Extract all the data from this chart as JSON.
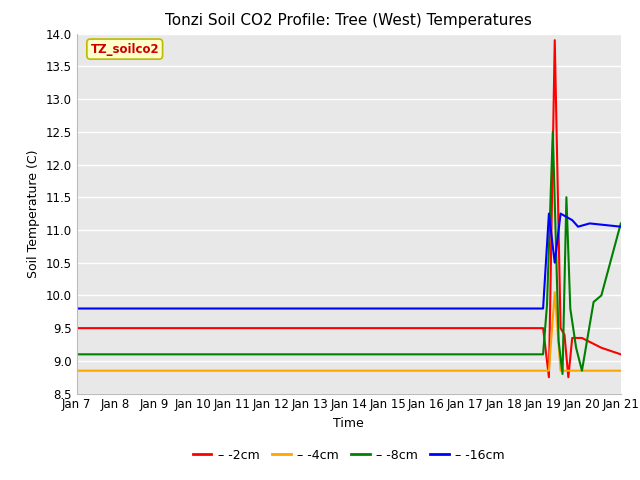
{
  "title": "Tonzi Soil CO2 Profile: Tree (West) Temperatures",
  "xlabel": "Time",
  "ylabel": "Soil Temperature (C)",
  "ylim": [
    8.5,
    14.0
  ],
  "yticks": [
    8.5,
    9.0,
    9.5,
    10.0,
    10.5,
    11.0,
    11.5,
    12.0,
    12.5,
    13.0,
    13.5,
    14.0
  ],
  "x_tick_labels": [
    "Jan 7",
    "Jan 8",
    "Jan 9",
    "Jan 10",
    "Jan 11",
    "Jan 12",
    "Jan 13",
    "Jan 14",
    "Jan 15",
    "Jan 16",
    "Jan 17",
    "Jan 18",
    "Jan 19",
    "Jan 20",
    "Jan 21"
  ],
  "watermark_text": "TZ_soilco2",
  "colors": {
    "2cm": "#ff0000",
    "4cm": "#ffa500",
    "8cm": "#008000",
    "16cm": "#0000ff"
  },
  "series": {
    "2cm": {
      "x": [
        0,
        12.0,
        12.15,
        12.3,
        12.45,
        12.55,
        12.65,
        12.75,
        13.0,
        13.5,
        14.0
      ],
      "y": [
        9.5,
        9.5,
        8.75,
        13.9,
        9.5,
        9.4,
        8.75,
        9.35,
        9.35,
        9.2,
        9.1
      ]
    },
    "4cm": {
      "x": [
        0,
        12.0,
        12.15,
        12.3,
        12.45,
        13.0,
        14.0
      ],
      "y": [
        8.85,
        8.85,
        8.85,
        10.05,
        8.85,
        8.85,
        8.85
      ]
    },
    "8cm": {
      "x": [
        0,
        12.0,
        12.1,
        12.25,
        12.4,
        12.5,
        12.6,
        12.7,
        12.85,
        13.0,
        13.3,
        13.5,
        14.0
      ],
      "y": [
        9.1,
        9.1,
        9.85,
        12.5,
        9.3,
        8.8,
        11.5,
        9.8,
        9.2,
        8.85,
        9.9,
        10.0,
        11.1
      ]
    },
    "16cm": {
      "x": [
        0,
        12.0,
        12.15,
        12.3,
        12.45,
        12.6,
        12.75,
        12.9,
        13.2,
        14.0
      ],
      "y": [
        9.8,
        9.8,
        11.25,
        10.5,
        11.25,
        11.2,
        11.15,
        11.05,
        11.1,
        11.05
      ]
    }
  },
  "fig_bg_color": "#ffffff",
  "plot_bg_color": "#e8e8e8",
  "grid_color": "#ffffff",
  "title_fontsize": 11,
  "axis_label_fontsize": 9,
  "tick_fontsize": 8.5
}
